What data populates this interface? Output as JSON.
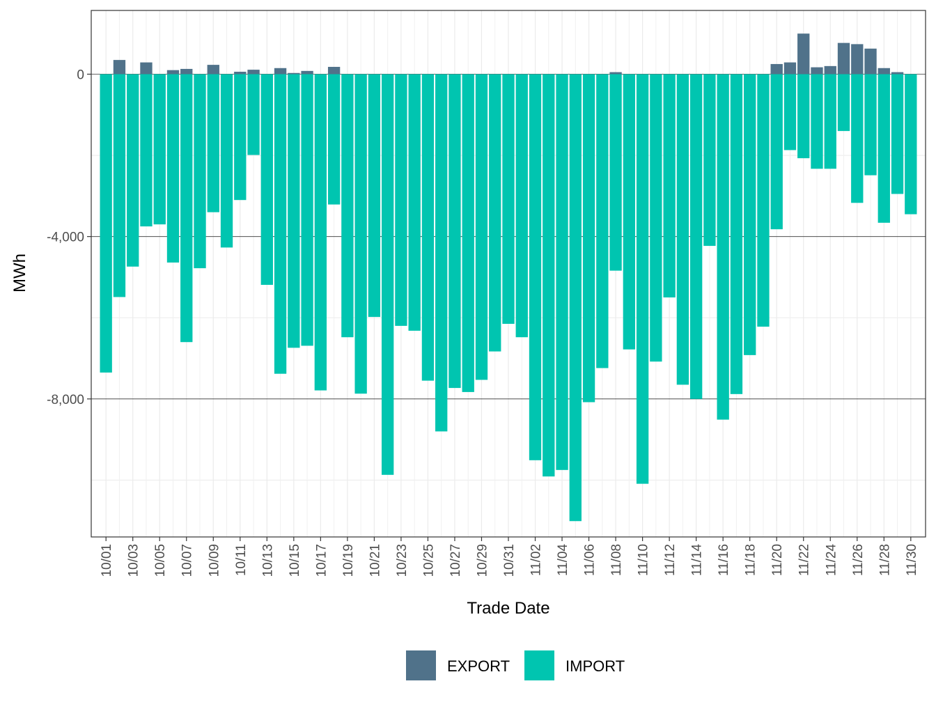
{
  "chart_data": {
    "type": "bar",
    "stacked": true,
    "title": "",
    "xlabel": "Trade Date",
    "ylabel": "MWh",
    "ylim": [
      -11400,
      1570
    ],
    "yticks": [
      0,
      -4000,
      -8000
    ],
    "ytick_labels": [
      "0",
      "-4,000",
      "-8,000"
    ],
    "grid": true,
    "legend_position": "bottom",
    "categories": [
      "10/01",
      "10/02",
      "10/03",
      "10/04",
      "10/05",
      "10/06",
      "10/07",
      "10/08",
      "10/09",
      "10/10",
      "10/11",
      "10/12",
      "10/13",
      "10/14",
      "10/15",
      "10/16",
      "10/17",
      "10/18",
      "10/19",
      "10/20",
      "10/21",
      "10/22",
      "10/23",
      "10/24",
      "10/25",
      "10/26",
      "10/27",
      "10/28",
      "10/29",
      "10/30",
      "10/31",
      "11/01",
      "11/02",
      "11/03",
      "11/04",
      "11/05",
      "11/06",
      "11/07",
      "11/08",
      "11/09",
      "11/10",
      "11/11",
      "11/12",
      "11/13",
      "11/14",
      "11/15",
      "11/16",
      "11/17",
      "11/18",
      "11/19",
      "11/20",
      "11/21",
      "11/22",
      "11/23",
      "11/24",
      "11/25",
      "11/26",
      "11/27",
      "11/28",
      "11/29",
      "11/30"
    ],
    "xtick_labels": [
      "10/01",
      "10/03",
      "10/05",
      "10/07",
      "10/09",
      "10/11",
      "10/13",
      "10/15",
      "10/17",
      "10/19",
      "10/21",
      "10/23",
      "10/25",
      "10/27",
      "10/29",
      "10/31",
      "11/02",
      "11/04",
      "11/06",
      "11/08",
      "11/10",
      "11/12",
      "11/14",
      "11/16",
      "11/18",
      "11/20",
      "11/22",
      "11/24",
      "11/26",
      "11/28",
      "11/30"
    ],
    "series": [
      {
        "name": "EXPORT",
        "color": "#50728a",
        "values": [
          0,
          350,
          0,
          290,
          0,
          100,
          130,
          0,
          230,
          0,
          60,
          110,
          0,
          150,
          30,
          80,
          0,
          180,
          0,
          0,
          0,
          0,
          0,
          0,
          0,
          0,
          0,
          0,
          0,
          0,
          0,
          0,
          0,
          0,
          0,
          0,
          0,
          0,
          50,
          0,
          0,
          0,
          0,
          0,
          0,
          0,
          0,
          0,
          0,
          0,
          250,
          290,
          1000,
          170,
          200,
          770,
          740,
          630,
          150,
          50,
          0
        ]
      },
      {
        "name": "IMPORT",
        "color": "#00c5b0",
        "values": [
          -7350,
          -5490,
          -4740,
          -3750,
          -3700,
          -4640,
          -6600,
          -4780,
          -3400,
          -4270,
          -3100,
          -1990,
          -5190,
          -7380,
          -6740,
          -6690,
          -7790,
          -3210,
          -6480,
          -7870,
          -5980,
          -9870,
          -6200,
          -6320,
          -7550,
          -8800,
          -7730,
          -7830,
          -7530,
          -6830,
          -6150,
          -6480,
          -9510,
          -9910,
          -9750,
          -11010,
          -8080,
          -7240,
          -4840,
          -6780,
          -10090,
          -7080,
          -5500,
          -7650,
          -8000,
          -4230,
          -8510,
          -7880,
          -6920,
          -6220,
          -3820,
          -1870,
          -2070,
          -2330,
          -2330,
          -1400,
          -3170,
          -2490,
          -3660,
          -2950,
          -3450
        ]
      }
    ]
  }
}
